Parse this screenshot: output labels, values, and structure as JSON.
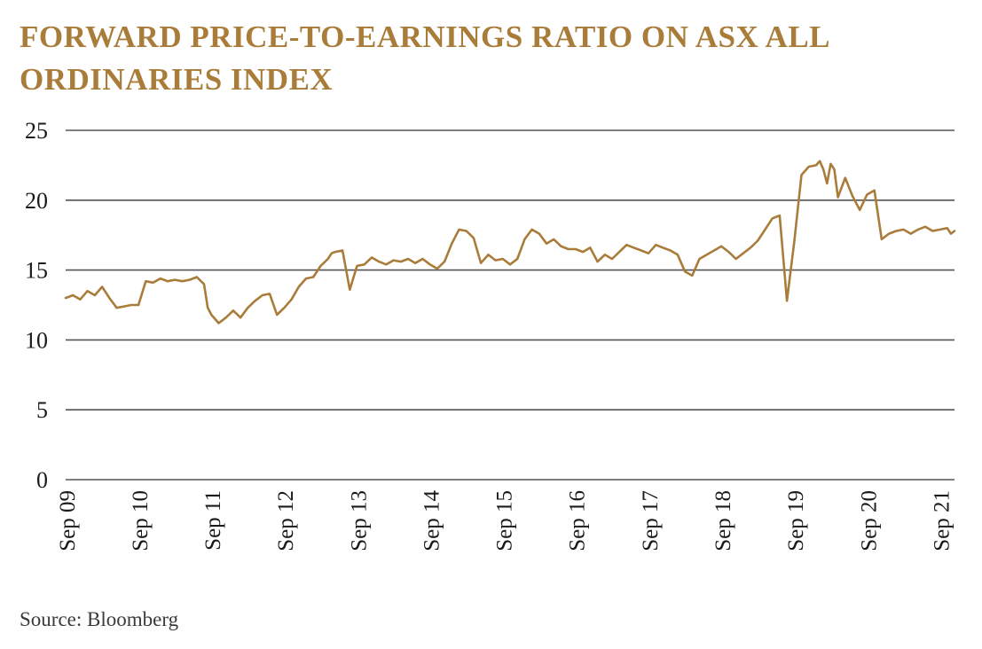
{
  "colors": {
    "accent": "#a97c3a",
    "grid": "#555555",
    "text": "#1a1a1a"
  },
  "chart_data": {
    "type": "line",
    "title": "FORWARD PRICE-TO-EARNINGS RATIO ON ASX ALL ORDINARIES INDEX",
    "source": "Source: Bloomberg",
    "xlabel": "",
    "ylabel": "",
    "ylim": [
      0,
      25
    ],
    "yticks": [
      0,
      5,
      10,
      15,
      20,
      25
    ],
    "xlim": [
      2009.7,
      2021.9
    ],
    "xticks": [
      {
        "label": "Sep 09",
        "x": 2009.71
      },
      {
        "label": "Sep 10",
        "x": 2010.71
      },
      {
        "label": "Sep 11",
        "x": 2011.71
      },
      {
        "label": "Sep 12",
        "x": 2012.71
      },
      {
        "label": "Sep 13",
        "x": 2013.71
      },
      {
        "label": "Sep 14",
        "x": 2014.71
      },
      {
        "label": "Sep 15",
        "x": 2015.71
      },
      {
        "label": "Sep 16",
        "x": 2016.71
      },
      {
        "label": "Sep 17",
        "x": 2017.71
      },
      {
        "label": "Sep 18",
        "x": 2018.71
      },
      {
        "label": "Sep 19",
        "x": 2019.71
      },
      {
        "label": "Sep 20",
        "x": 2020.71
      },
      {
        "label": "Sep 21",
        "x": 2021.71
      }
    ],
    "grid": true,
    "series": [
      {
        "name": "Forward P/E",
        "color": "#a97c3a",
        "x": [
          2009.7,
          2009.8,
          2009.9,
          2010.0,
          2010.1,
          2010.2,
          2010.3,
          2010.4,
          2010.5,
          2010.6,
          2010.7,
          2010.8,
          2010.9,
          2011.0,
          2011.1,
          2011.2,
          2011.3,
          2011.4,
          2011.5,
          2011.6,
          2011.65,
          2011.7,
          2011.8,
          2011.9,
          2012.0,
          2012.1,
          2012.2,
          2012.3,
          2012.4,
          2012.5,
          2012.6,
          2012.7,
          2012.8,
          2012.9,
          2013.0,
          2013.1,
          2013.2,
          2013.3,
          2013.35,
          2013.4,
          2013.5,
          2013.6,
          2013.7,
          2013.8,
          2013.9,
          2014.0,
          2014.1,
          2014.2,
          2014.3,
          2014.4,
          2014.5,
          2014.6,
          2014.7,
          2014.8,
          2014.9,
          2015.0,
          2015.1,
          2015.2,
          2015.3,
          2015.4,
          2015.5,
          2015.6,
          2015.7,
          2015.8,
          2015.9,
          2016.0,
          2016.1,
          2016.2,
          2016.3,
          2016.4,
          2016.5,
          2016.6,
          2016.7,
          2016.8,
          2016.9,
          2017.0,
          2017.1,
          2017.2,
          2017.3,
          2017.4,
          2017.5,
          2017.6,
          2017.7,
          2017.8,
          2017.9,
          2018.0,
          2018.1,
          2018.2,
          2018.3,
          2018.4,
          2018.5,
          2018.6,
          2018.7,
          2018.8,
          2018.9,
          2019.0,
          2019.1,
          2019.2,
          2019.3,
          2019.4,
          2019.5,
          2019.6,
          2019.7,
          2019.8,
          2019.9,
          2020.0,
          2020.05,
          2020.1,
          2020.15,
          2020.2,
          2020.25,
          2020.3,
          2020.4,
          2020.5,
          2020.6,
          2020.7,
          2020.8,
          2020.9,
          2021.0,
          2021.1,
          2021.2,
          2021.3,
          2021.4,
          2021.5,
          2021.6,
          2021.7,
          2021.8,
          2021.85,
          2021.9
        ],
        "values": [
          13.0,
          13.2,
          12.9,
          13.5,
          13.2,
          13.8,
          13.0,
          12.3,
          12.4,
          12.5,
          12.5,
          14.2,
          14.1,
          14.4,
          14.2,
          14.3,
          14.2,
          14.3,
          14.5,
          14.0,
          12.3,
          11.8,
          11.2,
          11.6,
          12.1,
          11.6,
          12.3,
          12.8,
          13.2,
          13.3,
          11.8,
          12.3,
          12.9,
          13.8,
          14.4,
          14.5,
          15.3,
          15.8,
          16.2,
          16.3,
          16.4,
          13.6,
          15.3,
          15.4,
          15.9,
          15.6,
          15.4,
          15.7,
          15.6,
          15.8,
          15.5,
          15.8,
          15.4,
          15.1,
          15.6,
          16.9,
          17.9,
          17.8,
          17.3,
          15.5,
          16.1,
          15.7,
          15.8,
          15.4,
          15.8,
          17.2,
          17.9,
          17.6,
          16.9,
          17.2,
          16.7,
          16.5,
          16.5,
          16.3,
          16.6,
          15.6,
          16.1,
          15.8,
          16.3,
          16.8,
          16.6,
          16.4,
          16.2,
          16.8,
          16.6,
          16.4,
          16.1,
          14.9,
          14.6,
          15.8,
          16.1,
          16.4,
          16.7,
          16.3,
          15.8,
          16.2,
          16.6,
          17.1,
          17.9,
          18.7,
          18.9,
          12.8,
          17.0,
          21.8,
          22.4,
          22.5,
          22.8,
          22.2,
          21.2,
          22.6,
          22.2,
          20.2,
          21.6,
          20.3,
          19.3,
          20.4,
          20.7,
          17.2,
          17.6,
          17.8,
          17.9,
          17.6,
          17.9,
          18.1,
          17.8,
          17.9,
          18.0,
          17.6,
          17.8
        ]
      }
    ]
  }
}
